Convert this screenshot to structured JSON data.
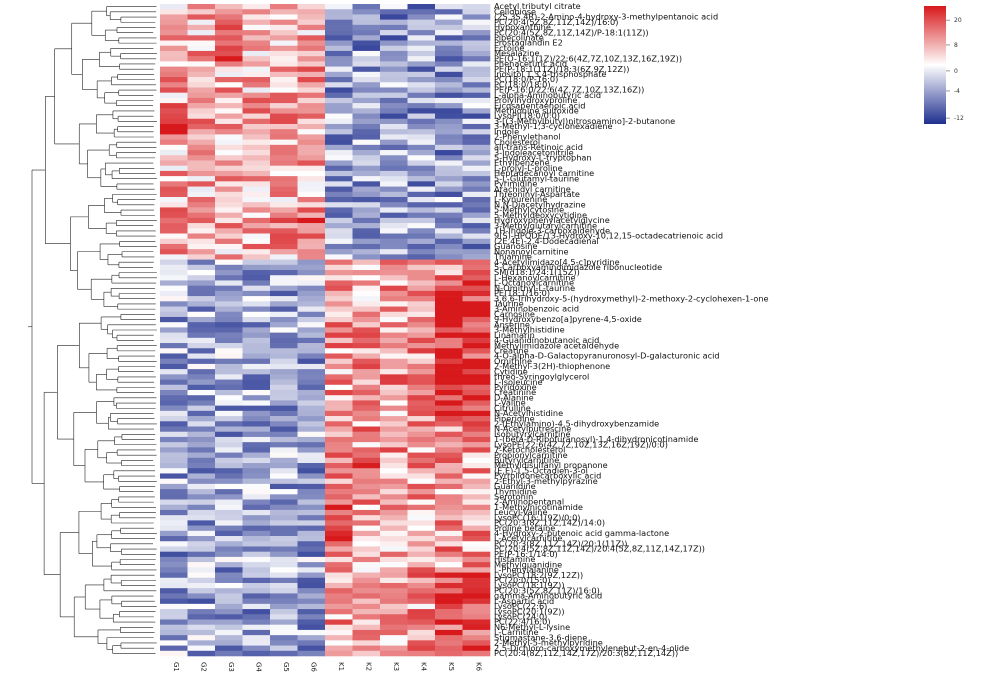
{
  "chart_data": {
    "type": "heatmap",
    "title": "",
    "legend": {
      "position": "top-right",
      "ticks": [
        "20",
        "8",
        "0",
        "-4",
        "-12"
      ],
      "colors": {
        "high": "#d7191c",
        "mid": "#ffffff",
        "low": "#1f2f8f"
      }
    },
    "columns": [
      "G1",
      "G2",
      "G3",
      "G4",
      "G5",
      "G6",
      "K1",
      "K2",
      "K3",
      "K4",
      "K5",
      "K6"
    ],
    "rows": [
      "Acetyl tributyl citrate",
      "Cellobiose",
      "(2S,3S,4R)-2-Amino-4-hydroxy-3-methylpentanoic acid",
      "PC(20:4(5Z,8Z,11Z,14Z)/16:0)",
      "Hypoxanthine",
      "PC(20:4(5Z,8Z,11Z,14Z)/P-18:1(11Z))",
      "Pipecolinate",
      "Prostaglandin E2",
      "Ectoine",
      "Mesalazine",
      "PE(O-16:1(1Z)/22:6(4Z,7Z,10Z,13Z,16Z,19Z))",
      "Phenaceturic acid",
      "PE(P-18:1(11Z)/18:3(6Z,9Z,12Z))",
      "Inositol 1,3,4-trisphosphate",
      "PC(18:0/P-16:0)",
      "PC(18:0/18:0)",
      "PE(P-16:0/22:6(4Z,7Z,10Z,13Z,16Z))",
      "L-alpha-Aminobutyric acid",
      "Prolylhydroxyproline",
      "Eicosapentaenoic acid",
      "Methionine sulfoxide",
      "LysoPI(18:0/0:0)",
      "3-[(3-Methylbutyl)nitrosoamino]-2-butanone",
      "3-Methyl-1,3-cyclohexadiene",
      "Indole",
      "2-Phenylethanol",
      "Cholesterol",
      "all-trans-Retinoic acid",
      "3-Indoleacetonitrile",
      "5-Hydroxy-L-tryptophan",
      "Ethylbenzene",
      "L-prolyl-L-proline",
      "Heptadecanoyl carnitine",
      "5-L-Glutamyl-taurine",
      "Pyrimidine",
      "Arachidyl carnitine",
      "Threoninyl-Aspartate",
      "L-Kynurenine",
      "N,N-Diacetylhydrazine",
      "5-Methylcytosine",
      "5-Methyldeoxycytidine",
      "Hydroxyphenylacetylglycine",
      "3-Methylglutarylcarnitine",
      "1H-Indole-3-carboxaldehyde",
      "9(S)-HPODE/13-Hydroxy-10,12,15-octadecatrienoic acid",
      "(2E,4E)-2,4-Dodecadienal",
      "Guanosine",
      "Nonanoylcarnitine",
      "Thiamine",
      "4-Acetylimidazo[4,5-c]pyridine",
      "5-Carboxyaminoimidazole ribonucleotide",
      "SM(d18:1/24:1(15Z))",
      "L-Hexanoylcarnitine",
      "L-Octanoylcarnitine",
      "N-Omithyl-L-taurine",
      "PE(18:1/16:0)",
      "3,6,6-Trihydroxy-5-(hydroxymethyl)-2-methoxy-2-cyclohexen-1-one",
      "Taurine",
      "3-Aminobenzoic acid",
      "Carnosine",
      "9-Hydroxybenzo[a]pyrene-4,5-oxide",
      "Anserine",
      "3-Methylhistidine",
      "Linamarin",
      "4-Guanidinobutanoic acid",
      "Methylimidazole acetaldehyde",
      "Creatine",
      "4-O-alpha-D-Galactopyranuronosyl-D-galacturonic acid",
      "Ornithine",
      "2-Methyl-3(2H)-thiophenone",
      "Cytidine",
      "threo-Syringoylglycerol",
      "L-Isoleucine",
      "Pyridoxine",
      "Creatinine",
      "D-Alanine",
      "L-Valine",
      "Citrulline",
      "N-Acetylhistidine",
      "Piperidine",
      "2-(Ethylamino)-4,5-dihydroxybenzamide",
      "N-Acetylputrescine",
      "Isobutyrylcarnitine",
      "1-(beta-D-Ribofuranosyl)-1,4-dihydronicotinamide",
      "LysoPE(22:6(4Z,7Z,10Z,13Z,16Z,19Z)/0:0)",
      "7-Ketocholesterol",
      "Propionylcarnitine",
      "Butyrylcarnitine",
      "Methyldisulfanyl propanone",
      "(E,E)-1,5-Octadien-3-ol",
      "Pyrrolidonecarboxylic acid",
      "2-Ethyl-3-methylpyrazine",
      "Guanidine",
      "Thymidine",
      "Serotonin",
      "2-Aminopentanal",
      "1-Methylnicotinamide",
      "Leucyl-Valine",
      "LysoPC(16:1(9Z)/0:0)",
      "PC(20:3(8Z,11Z,14Z)/14:0)",
      "Proline betaine",
      "4-Hydroxy-2-butenoic acid gamma-lactone",
      "L-Acetylcarnitine",
      "PC(20:3(8Z,11Z,14Z)/20:1(11Z))",
      "PC(20:4(5Z,8Z,11Z,14Z)/20:4(5Z,8Z,11Z,14Z,17Z))",
      "PE(P-16:1/14:0)",
      "Histamine",
      "Methylguanidine",
      "L-Phenylalanine",
      "LysoPC(18:2(9Z,12Z))",
      "PC(20:0/15:0)",
      "LysoPC(18:1(9Z))",
      "PC(20:3(5Z,8Z,11Z)/16:0)",
      "gamma-Aminobutyric acid",
      "L-Aspartic acid",
      "LysoPC(22:6)",
      "LysoPC(20:1(9Z))",
      "LysoPC(24:0)",
      "PC(22:4/16:0)",
      "N6-Methyl-L-lysine",
      "L-Carnitine",
      "Stigmastane-3,6-diene",
      "2-Methyl-5-methylpyridine",
      "2,5-Dichloro-carboxymethylenebut-2-en-4-olide",
      "PC(20:4(8Z,11Z,14Z,17Z)/20:3(8Z,11Z,14Z))"
    ]
  }
}
